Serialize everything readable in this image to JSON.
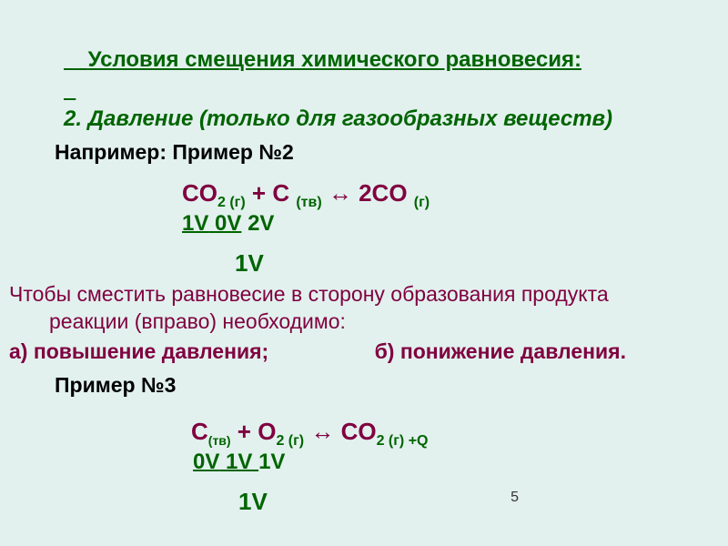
{
  "title_line1": "Условия смещения химического равновесия",
  "title_colon": ":",
  "title_line2": "2. Давление (только для газообразных веществ)",
  "example2_heading": "Например: Пример №2",
  "eq1": {
    "lhs1": "CO",
    "lhs1_sub": "2 (г)",
    "plus": " + ",
    "lhs2": "C ",
    "lhs2_sub": "(тв)",
    "arrow": " ↔  ",
    "rhs": "2CO ",
    "rhs_sub": "(г)"
  },
  "vol1": {
    "v1": " 1V",
    "v2": "0V",
    "v3": "2V"
  },
  "sum1": "1V",
  "body_line1": "Чтобы сместить равновесие в сторону образования продукта",
  "body_line2": "реакции (вправо) необходимо:",
  "opt_a": "а) повышение давления;",
  "opt_b": "б) понижение давления.",
  "example3_heading": "Пример №3",
  "eq2": {
    "lhs1": "C",
    "lhs1_sub": "(тв)",
    "plus": " + ",
    "lhs2": "O",
    "lhs2_sub": "2 (г)",
    "arrow": " ↔  ",
    "rhs": "CO",
    "rhs_sub": "2 (г) +Q"
  },
  "vol2": {
    "v1": " 0V",
    "v2": "1V ",
    "v3": "1V"
  },
  "sum2": "1V",
  "page_number": "5",
  "colors": {
    "background": "#e2f1ee",
    "green": "#006400",
    "maroon": "#800040",
    "black": "#000000"
  },
  "font_sizes": {
    "title": 24,
    "heading": 23,
    "equation": 26,
    "volumes": 24,
    "body": 23,
    "subscript": 16,
    "pagenum": 16
  }
}
